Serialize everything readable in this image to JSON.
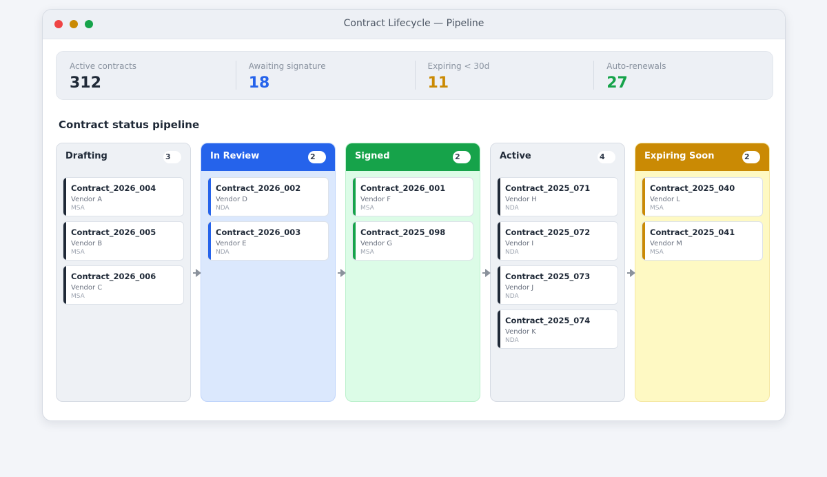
{
  "window": {
    "title": "Contract Lifecycle — Pipeline"
  },
  "stats": [
    {
      "label": "Active contracts",
      "value": "312",
      "color": "#1f2937"
    },
    {
      "label": "Awaiting signature",
      "value": "18",
      "color": "#2563eb"
    },
    {
      "label": "Expiring < 30d",
      "value": "11",
      "color": "#ca8a04"
    },
    {
      "label": "Auto-renewals",
      "value": "27",
      "color": "#16a34a"
    }
  ],
  "pipeline": {
    "title": "Contract status pipeline",
    "columns": [
      {
        "title": "Drafting",
        "count": "3",
        "head_bg": "#eef1f5",
        "head_fg": "#1f2937",
        "body_bg": "#eef1f5",
        "border": "#d6dbe3",
        "accent": "#1f2937",
        "cards": [
          {
            "id": "Contract_2026_004",
            "vendor": "Vendor A",
            "type": "MSA"
          },
          {
            "id": "Contract_2026_005",
            "vendor": "Vendor B",
            "type": "MSA"
          },
          {
            "id": "Contract_2026_006",
            "vendor": "Vendor C",
            "type": "MSA"
          }
        ]
      },
      {
        "title": "In Review",
        "count": "2",
        "head_bg": "#2563eb",
        "head_fg": "#ffffff",
        "body_bg": "#dbe8fd",
        "border": "#bfd4fb",
        "accent": "#2563eb",
        "cards": [
          {
            "id": "Contract_2026_002",
            "vendor": "Vendor D",
            "type": "NDA"
          },
          {
            "id": "Contract_2026_003",
            "vendor": "Vendor E",
            "type": "NDA"
          }
        ]
      },
      {
        "title": "Signed",
        "count": "2",
        "head_bg": "#16a34a",
        "head_fg": "#ffffff",
        "body_bg": "#dcfce7",
        "border": "#bbf0cc",
        "accent": "#16a34a",
        "cards": [
          {
            "id": "Contract_2026_001",
            "vendor": "Vendor F",
            "type": "MSA"
          },
          {
            "id": "Contract_2025_098",
            "vendor": "Vendor G",
            "type": "MSA"
          }
        ]
      },
      {
        "title": "Active",
        "count": "4",
        "head_bg": "#eef1f5",
        "head_fg": "#1f2937",
        "body_bg": "#eef1f5",
        "border": "#d6dbe3",
        "accent": "#1f2937",
        "cards": [
          {
            "id": "Contract_2025_071",
            "vendor": "Vendor H",
            "type": "NDA"
          },
          {
            "id": "Contract_2025_072",
            "vendor": "Vendor I",
            "type": "NDA"
          },
          {
            "id": "Contract_2025_073",
            "vendor": "Vendor J",
            "type": "NDA"
          },
          {
            "id": "Contract_2025_074",
            "vendor": "Vendor K",
            "type": "NDA"
          }
        ]
      },
      {
        "title": "Expiring Soon",
        "count": "2",
        "head_bg": "#ca8a04",
        "head_fg": "#ffffff",
        "body_bg": "#fef9c3",
        "border": "#f5e7a3",
        "accent": "#ca8a04",
        "cards": [
          {
            "id": "Contract_2025_040",
            "vendor": "Vendor L",
            "type": "MSA"
          },
          {
            "id": "Contract_2025_041",
            "vendor": "Vendor M",
            "type": "MSA"
          }
        ]
      }
    ]
  }
}
